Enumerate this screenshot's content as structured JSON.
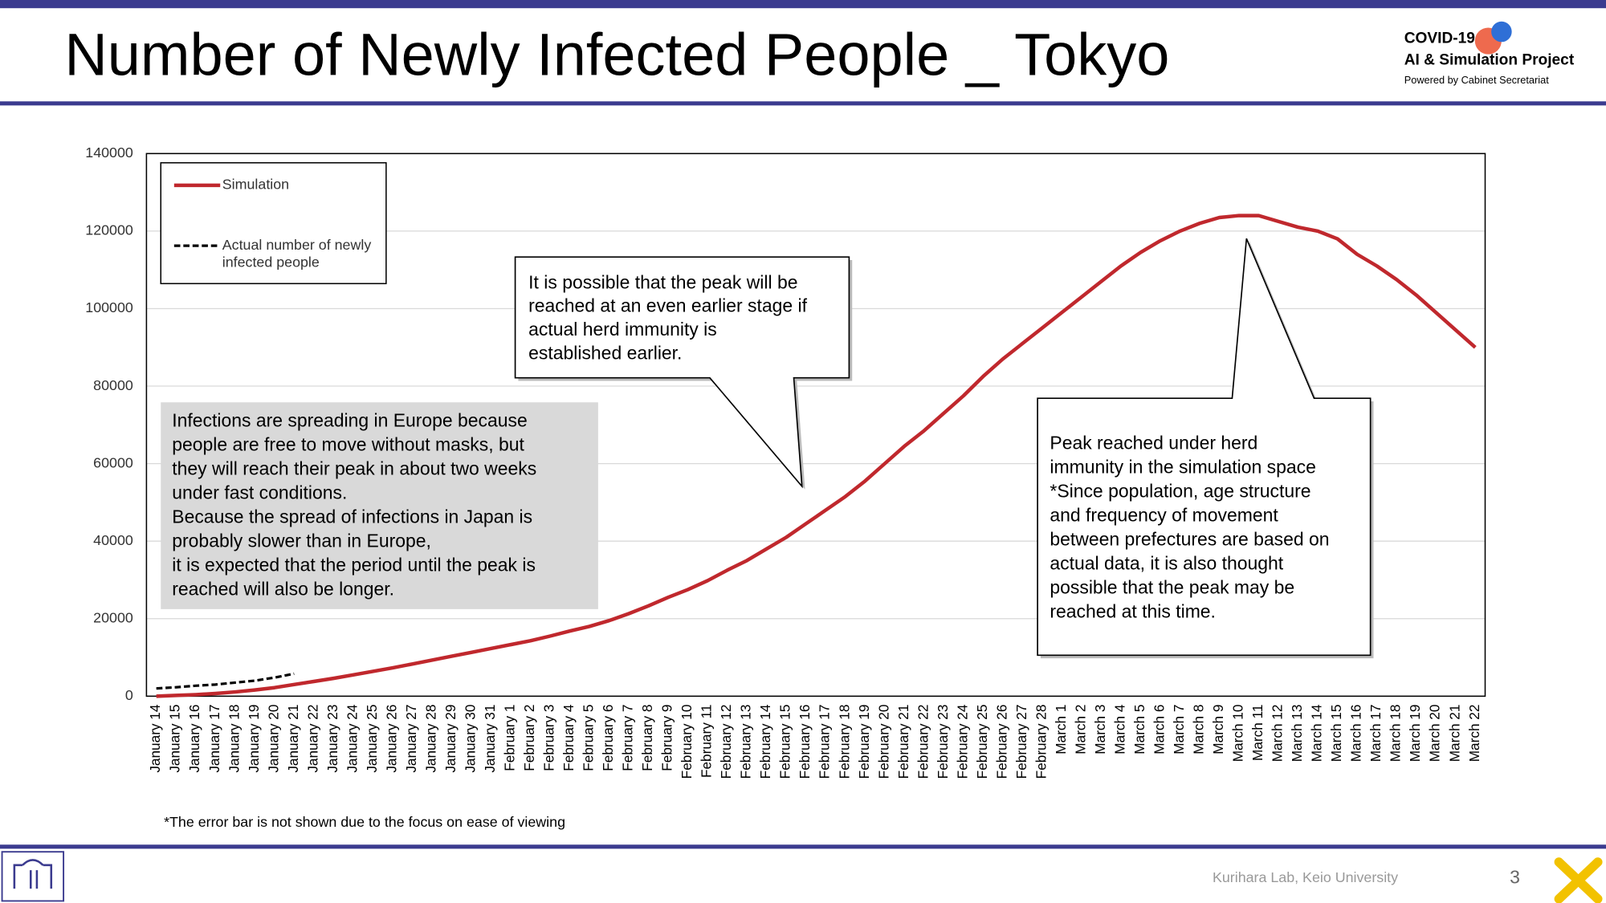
{
  "header": {
    "logo_line1": "COVID-19",
    "logo_line2": "AI & Simulation Project",
    "logo_line3": "Powered by Cabinet Secretariat"
  },
  "footer": {
    "credit": "Kurihara Lab, Keio University",
    "page": "3"
  },
  "chart_data": {
    "type": "line",
    "title": "Number of Newly Infected People _ Tokyo",
    "footnote": "*The error bar is not shown due to the focus on ease of viewing",
    "categories": [
      "January 14",
      "January 15",
      "January 16",
      "January 17",
      "January 18",
      "January 19",
      "January 20",
      "January 21",
      "January 22",
      "January 23",
      "January 24",
      "January 25",
      "January 26",
      "January 27",
      "January 28",
      "January 29",
      "January 30",
      "January 31",
      "February 1",
      "February 2",
      "February 3",
      "February 4",
      "February 5",
      "February 6",
      "February 7",
      "February 8",
      "February 9",
      "February 10",
      "February 11",
      "February 12",
      "February 13",
      "February 14",
      "February 15",
      "February 16",
      "February 17",
      "February 18",
      "February 19",
      "February 20",
      "February 21",
      "February 22",
      "February 23",
      "February 24",
      "February 25",
      "February 26",
      "February 27",
      "February 28",
      "March 1",
      "March 2",
      "March 3",
      "March 4",
      "March 5",
      "March 6",
      "March 7",
      "March 8",
      "March 9",
      "March 10",
      "March 11",
      "March 12",
      "March 13",
      "March 14",
      "March 15",
      "March 16",
      "March 17",
      "March 18",
      "March 19",
      "March 20",
      "March 21",
      "March 22"
    ],
    "series": [
      {
        "name": "Simulation",
        "color": "#c0282d",
        "dashed": false,
        "values": [
          0,
          200,
          400,
          700,
          1100,
          1600,
          2200,
          3000,
          3800,
          4600,
          5500,
          6400,
          7300,
          8300,
          9300,
          10300,
          11300,
          12300,
          13300,
          14300,
          15500,
          16800,
          18000,
          19500,
          21300,
          23300,
          25500,
          27500,
          29800,
          32500,
          35000,
          38000,
          41000,
          44500,
          48000,
          51500,
          55500,
          60000,
          64500,
          68500,
          73000,
          77500,
          82500,
          87000,
          91000,
          95000,
          99000,
          103000,
          107000,
          111000,
          114500,
          117500,
          120000,
          122000,
          123500,
          124000,
          124000,
          122500,
          121000,
          120000,
          118000,
          114000,
          111000,
          107500,
          103500,
          99000,
          94500,
          90000
        ]
      },
      {
        "name": "Actual number of newly infected people",
        "name_lines": [
          "Actual number of newly",
          "infected people"
        ],
        "color": "#000000",
        "dashed": true,
        "values": [
          2000,
          2300,
          2700,
          3000,
          3500,
          4000,
          4800,
          5800,
          null,
          null,
          null,
          null,
          null,
          null,
          null,
          null,
          null,
          null,
          null,
          null,
          null,
          null,
          null,
          null,
          null,
          null,
          null,
          null,
          null,
          null,
          null,
          null,
          null,
          null,
          null,
          null,
          null,
          null,
          null,
          null,
          null,
          null,
          null,
          null,
          null,
          null,
          null,
          null,
          null,
          null,
          null,
          null,
          null,
          null,
          null,
          null,
          null,
          null,
          null,
          null,
          null,
          null,
          null,
          null,
          null,
          null,
          null,
          null
        ]
      }
    ],
    "ylim": [
      0,
      140000
    ],
    "yticks": [
      0,
      20000,
      40000,
      60000,
      80000,
      100000,
      120000,
      140000
    ],
    "grid": true,
    "legend": "upper left",
    "annotations": [
      {
        "lines": [
          "Infections are spreading in Europe because",
          "people are free to move without masks, but",
          "they will reach their peak in about two weeks",
          "under fast conditions.",
          "Because the spread of infections in Japan is",
          "probably slower than in Europe,",
          "it is expected that the period until the peak is",
          "reached will also be longer."
        ]
      },
      {
        "lines": [
          "It is possible that the peak will be",
          "reached at an even earlier stage if",
          "actual herd immunity is",
          "established earlier."
        ]
      },
      {
        "lines": [
          "Peak reached under herd",
          "immunity in the simulation space",
          "*Since population, age structure",
          "and frequency of movement",
          "between prefectures are based on",
          "actual data, it is also thought",
          "possible that the peak may be",
          "reached at this time."
        ]
      }
    ]
  }
}
